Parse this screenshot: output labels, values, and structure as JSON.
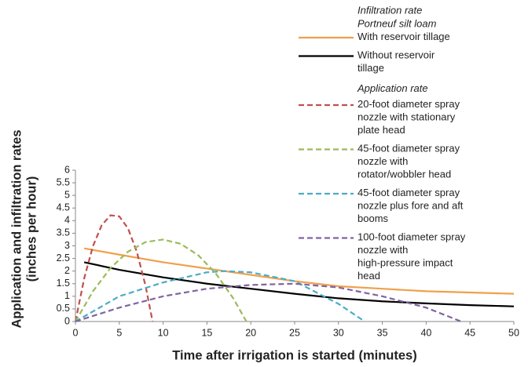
{
  "chart_data": {
    "type": "line",
    "x_label": "Time after irrigation is started (minutes)",
    "y_label": [
      "Application and infiltration rates",
      "(inches per hour)"
    ],
    "legend_headers": {
      "infiltration": [
        "Infiltration rate",
        "Portneuf silt loam"
      ],
      "application": "Application rate"
    },
    "xlim": [
      0,
      50
    ],
    "xticks": [
      0,
      5,
      10,
      15,
      20,
      25,
      30,
      35,
      40,
      45,
      50
    ],
    "ylim": [
      0,
      6
    ],
    "yticks": [
      0,
      0.5,
      1,
      1.5,
      2,
      2.5,
      3,
      3.5,
      4,
      4.5,
      5,
      5.5,
      6
    ],
    "legend_position": "right",
    "series": [
      {
        "name": "With reservoir tillage",
        "color": "#f0a04b",
        "dashed": false,
        "x": [
          1,
          5,
          10,
          15,
          20,
          25,
          30,
          35,
          40,
          45,
          50
        ],
        "values": [
          2.9,
          2.65,
          2.35,
          2.1,
          1.85,
          1.6,
          1.4,
          1.3,
          1.2,
          1.15,
          1.1
        ]
      },
      {
        "name": "Without reservoir tillage",
        "color": "#000000",
        "dashed": false,
        "x": [
          1,
          5,
          10,
          15,
          20,
          25,
          30,
          35,
          40,
          45,
          50
        ],
        "values": [
          2.35,
          2.05,
          1.75,
          1.5,
          1.3,
          1.1,
          0.92,
          0.8,
          0.72,
          0.65,
          0.6
        ]
      },
      {
        "name": "20-foot diameter spray nozzle with stationary plate head",
        "color": "#c0504d",
        "dashed": true,
        "x": [
          0,
          1,
          2,
          3,
          4,
          5,
          6,
          7,
          8,
          8.8
        ],
        "values": [
          0,
          1.71,
          2.99,
          3.82,
          4.21,
          4.17,
          3.69,
          2.77,
          1.41,
          0
        ]
      },
      {
        "name": "45-foot diameter spray nozzle with rotator/wobbler head",
        "color": "#9bbb59",
        "dashed": true,
        "x": [
          0,
          2,
          4,
          6,
          8,
          10,
          12,
          14,
          16,
          18,
          19.5
        ],
        "values": [
          0,
          1.2,
          2.12,
          2.77,
          3.15,
          3.25,
          3.08,
          2.63,
          1.91,
          0.92,
          0
        ]
      },
      {
        "name": "45-foot diameter spray nozzle plus fore and aft booms",
        "color": "#4bacc6",
        "dashed": true,
        "x": [
          0,
          5,
          10,
          15,
          17,
          20,
          25,
          30,
          33
        ],
        "values": [
          0,
          1.0,
          1.55,
          1.95,
          2.0,
          1.95,
          1.6,
          0.7,
          0
        ]
      },
      {
        "name": "100-foot diameter spray nozzle with high-pressure impact head",
        "color": "#8064a2",
        "dashed": true,
        "x": [
          0,
          5,
          10,
          15,
          20,
          25,
          30,
          35,
          40,
          44
        ],
        "values": [
          0,
          0.55,
          1.0,
          1.3,
          1.45,
          1.5,
          1.35,
          1.0,
          0.55,
          0
        ]
      }
    ]
  }
}
